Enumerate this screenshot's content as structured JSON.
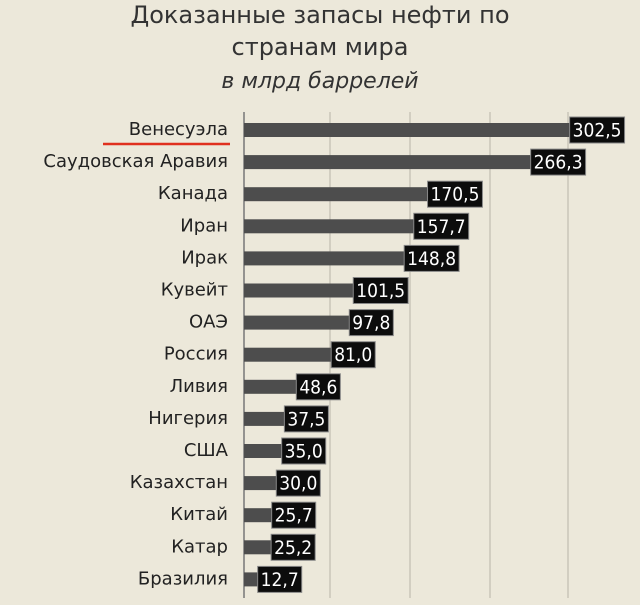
{
  "chart_data": {
    "type": "bar",
    "orientation": "horizontal",
    "title": [
      "Доказанные запасы нефти по",
      "странам мира"
    ],
    "subtitle": "в млрд баррелей",
    "categories": [
      "Венесуэла",
      "Саудовская Аравия",
      "Канада",
      "Иран",
      "Ирак",
      "Кувейт",
      "ОАЭ",
      "Россия",
      "Ливия",
      "Нигерия",
      "США",
      "Казахстан",
      "Китай",
      "Катар",
      "Бразилия"
    ],
    "values": [
      302.5,
      266.3,
      170.5,
      157.7,
      148.8,
      101.5,
      97.8,
      81.0,
      48.6,
      37.5,
      35.0,
      30.0,
      25.7,
      25.2,
      12.7
    ],
    "value_labels": [
      "302,5",
      "266,3",
      "170,5",
      "157,7",
      "148,8",
      "101,5",
      "97,8",
      "81,0",
      "48,6",
      "37,5",
      "35,0",
      "30,0",
      "25,7",
      "25,2",
      "12,7"
    ],
    "color": "#4d4d4d",
    "xlim": [
      0,
      340
    ]
  }
}
